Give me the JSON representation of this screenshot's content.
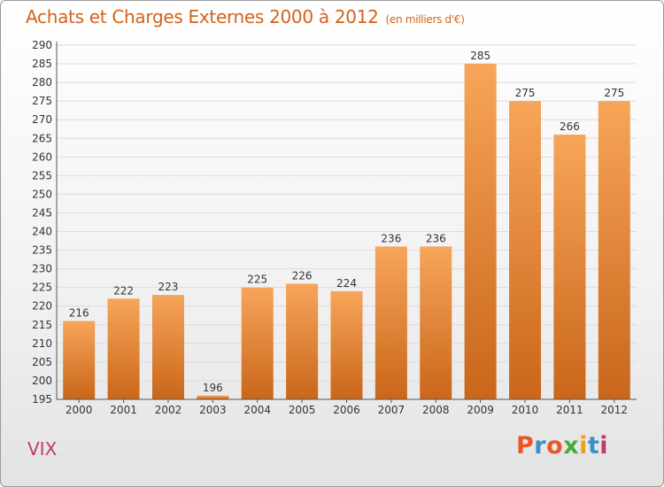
{
  "header": {
    "title": "Achats et Charges Externes 2000 à 2012",
    "subtitle": "(en milliers d'€)"
  },
  "footer": {
    "place": "VIX",
    "logo": "Proxiti",
    "logo_colors": [
      "#e8572a",
      "#3d8fcc",
      "#e8572a",
      "#4caa3f",
      "#e8a21a",
      "#3d8fcc",
      "#c0396b"
    ]
  },
  "colors": {
    "bar_top": "#f7a55a",
    "bar_bottom": "#c9661a",
    "title": "#d4621c",
    "place": "#c0396b"
  },
  "chart_data": {
    "type": "bar",
    "categories": [
      "2000",
      "2001",
      "2002",
      "2003",
      "2004",
      "2005",
      "2006",
      "2007",
      "2008",
      "2009",
      "2010",
      "2011",
      "2012"
    ],
    "values": [
      216,
      222,
      223,
      196,
      225,
      226,
      224,
      236,
      236,
      285,
      275,
      266,
      275
    ],
    "title": "Achats et Charges Externes 2000 à 2012",
    "xlabel": "",
    "ylabel": "",
    "ylim": [
      195,
      290
    ],
    "yticks": [
      195,
      200,
      205,
      210,
      215,
      220,
      225,
      230,
      235,
      240,
      245,
      250,
      255,
      260,
      265,
      270,
      275,
      280,
      285,
      290
    ],
    "grid": true,
    "legend": "none"
  }
}
